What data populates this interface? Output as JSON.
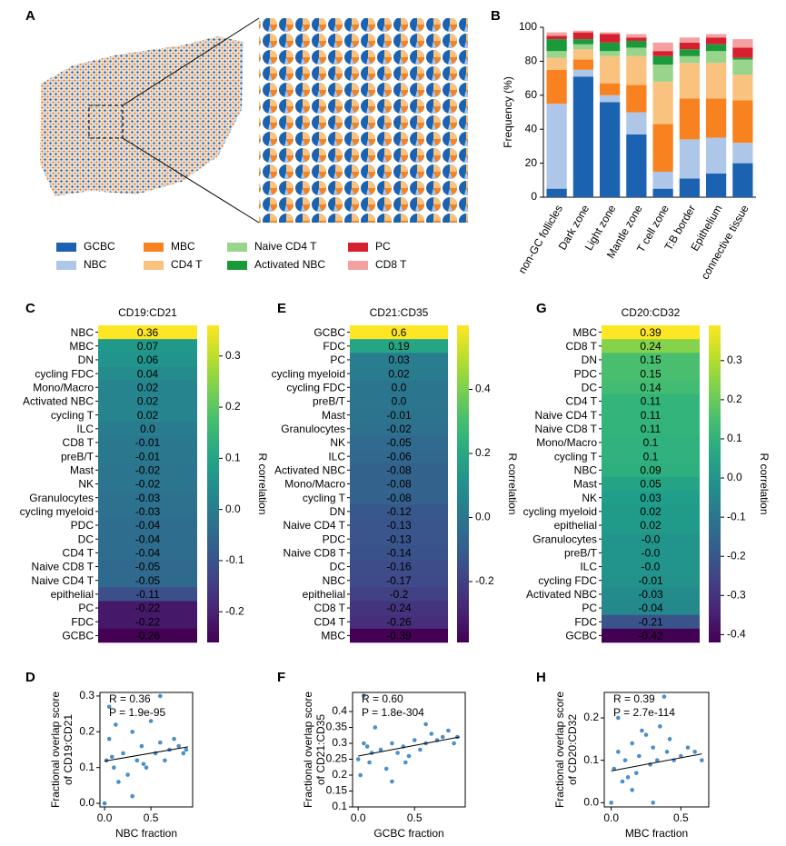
{
  "figure": {
    "panel_a": "A"
  },
  "chart_data": [
    {
      "type": "bar",
      "stacked": true,
      "panel": "B",
      "ylabel": "Frequency (%)",
      "categories": [
        "non-GC follicles",
        "Dark zone",
        "Light zone",
        "Mantle zone",
        "T cell zone",
        "T:B border",
        "Epithelium",
        "connective tissue"
      ],
      "series": [
        {
          "name": "GCBC",
          "color": "#1b63b0",
          "values": [
            5,
            71,
            56,
            37,
            5,
            11,
            14,
            20
          ]
        },
        {
          "name": "NBC",
          "color": "#aec7e8",
          "values": [
            50,
            4,
            4,
            13,
            10,
            23,
            21,
            12
          ]
        },
        {
          "name": "MBC",
          "color": "#f7821f",
          "values": [
            20,
            6,
            7,
            16,
            28,
            24,
            23,
            25
          ]
        },
        {
          "name": "CD4 T",
          "color": "#f9c27e",
          "values": [
            7,
            6,
            16,
            17,
            25,
            21,
            21,
            15
          ]
        },
        {
          "name": "Naive CD4 T",
          "color": "#98d48c",
          "values": [
            4,
            3,
            3,
            5,
            10,
            4,
            7,
            9
          ]
        },
        {
          "name": "Activated NBC",
          "color": "#1a9a3a",
          "values": [
            7,
            3,
            5,
            4,
            5,
            4,
            4,
            1
          ]
        },
        {
          "name": "PC",
          "color": "#d62030",
          "values": [
            2,
            4,
            5,
            2,
            3,
            4,
            4,
            6
          ]
        },
        {
          "name": "CD8 T",
          "color": "#f4a0a0",
          "values": [
            2,
            1,
            1,
            2,
            5,
            3,
            2,
            5
          ]
        }
      ],
      "ylim": [
        0,
        100
      ],
      "yticks": [
        0,
        20,
        40,
        60,
        80,
        100
      ]
    },
    {
      "type": "heatmap",
      "panel": "C",
      "title": "CD19:CD21",
      "colormap": "viridis",
      "colorbar_label": "R correlation",
      "categories": [
        "NBC",
        "MBC",
        "DN",
        "cycling FDC",
        "Mono/Macro",
        "Activated NBC",
        "cycling T",
        "ILC",
        "CD8 T",
        "preB/T",
        "Mast",
        "NK",
        "Granulocytes",
        "cycling myeloid",
        "PDC",
        "DC",
        "CD4 T",
        "Naive CD8 T",
        "Naive CD4 T",
        "epithelial",
        "PC",
        "FDC",
        "GCBC"
      ],
      "values": [
        0.36,
        0.07,
        0.06,
        0.04,
        0.02,
        0.02,
        0.02,
        0,
        -0.01,
        -0.01,
        -0.02,
        -0.02,
        -0.03,
        -0.03,
        -0.04,
        -0.04,
        -0.04,
        -0.05,
        -0.05,
        -0.11,
        -0.22,
        -0.22,
        -0.26
      ],
      "value_labels": [
        "0.36",
        "0.07",
        "0.06",
        "0.04",
        "0.02",
        "0.02",
        "0.02",
        "0.0",
        "-0.01",
        "-0.01",
        "-0.02",
        "-0.02",
        "-0.03",
        "-0.03",
        "-0.04",
        "-0.04",
        "-0.04",
        "-0.05",
        "-0.05",
        "-0.11",
        "-0.22",
        "-0.22",
        "-0.26"
      ],
      "clim": [
        -0.26,
        0.36
      ],
      "cticks": [
        -0.2,
        -0.1,
        {
          "value": 0,
          "label": "0.0"
        },
        0.1,
        0.2,
        0.3
      ]
    },
    {
      "type": "heatmap",
      "panel": "E",
      "title": "CD21:CD35",
      "colormap": "viridis",
      "colorbar_label": "R correlation",
      "categories": [
        "GCBC",
        "FDC",
        "PC",
        "cycling myeloid",
        "cycling FDC",
        "preB/T",
        "Mast",
        "Granulocytes",
        "NK",
        "ILC",
        "Activated NBC",
        "Mono/Macro",
        "cycling T",
        "DN",
        "Naive CD4 T",
        "PDC",
        "Naive CD8 T",
        "DC",
        "NBC",
        "epithelial",
        "CD8 T",
        "CD4 T",
        "MBC"
      ],
      "values": [
        0.6,
        0.19,
        0.03,
        0.02,
        0,
        0,
        -0.01,
        -0.02,
        -0.05,
        -0.06,
        -0.08,
        -0.08,
        -0.08,
        -0.12,
        -0.13,
        -0.13,
        -0.14,
        -0.16,
        -0.17,
        -0.2,
        -0.24,
        -0.26,
        -0.39
      ],
      "value_labels": [
        "0.6",
        "0.19",
        "0.03",
        "0.02",
        "0.0",
        "0.0",
        "-0.01",
        "-0.02",
        "-0.05",
        "-0.06",
        "-0.08",
        "-0.08",
        "-0.08",
        "-0.12",
        "-0.13",
        "-0.13",
        "-0.14",
        "-0.16",
        "-0.17",
        "-0.2",
        "-0.24",
        "-0.26",
        "-0.39"
      ],
      "clim": [
        -0.39,
        0.6
      ],
      "cticks": [
        -0.2,
        {
          "value": 0,
          "label": "0.0"
        },
        0.2,
        0.4
      ]
    },
    {
      "type": "heatmap",
      "panel": "G",
      "title": "CD20:CD32",
      "colormap": "viridis",
      "colorbar_label": "R correlation",
      "categories": [
        "MBC",
        "CD8 T",
        "DN",
        "PDC",
        "DC",
        "CD4 T",
        "Naive CD4 T",
        "Naive CD8 T",
        "Mono/Macro",
        "cycling T",
        "NBC",
        "Mast",
        "NK",
        "cycling myeloid",
        "epithelial",
        "Granulocytes",
        "preB/T",
        "ILC",
        "cycling FDC",
        "Activated NBC",
        "PC",
        "FDC",
        "GCBC"
      ],
      "values": [
        0.39,
        0.24,
        0.15,
        0.15,
        0.14,
        0.11,
        0.11,
        0.11,
        0.1,
        0.1,
        0.09,
        0.05,
        0.03,
        0.02,
        0.02,
        0,
        0,
        0,
        -0.01,
        -0.03,
        -0.04,
        -0.21,
        -0.42
      ],
      "value_labels": [
        "0.39",
        "0.24",
        "0.15",
        "0.15",
        "0.14",
        "0.11",
        "0.11",
        "0.11",
        "0.1",
        "0.1",
        "0.09",
        "0.05",
        "0.03",
        "0.02",
        "0.02",
        "-0.0",
        "-0.0",
        "-0.0",
        "-0.01",
        "-0.03",
        "-0.04",
        "-0.21",
        "-0.42"
      ],
      "clim": [
        -0.42,
        0.39
      ],
      "cticks": [
        -0.4,
        -0.3,
        -0.2,
        -0.1,
        {
          "value": 0,
          "label": "0.0"
        },
        0.1,
        0.2,
        0.3
      ]
    },
    {
      "type": "scatter",
      "panel": "D",
      "xlabel": "NBC fraction",
      "ylabel": [
        "Fractional overlap score",
        "of CD19:CD21"
      ],
      "color": "#2a7bbf",
      "annotations": [
        "R = 0.36",
        "P = 1.9e-95"
      ],
      "x": [
        0,
        0.02,
        0.05,
        0.1,
        0.12,
        0.2,
        0.25,
        0.3,
        0.35,
        0.4,
        0.45,
        0.5,
        0.55,
        0.6,
        0.65,
        0.7,
        0.75,
        0.8,
        0.85,
        0.88,
        0.05,
        0.3,
        0.15,
        0.6,
        0.08,
        0.42
      ],
      "values": [
        0,
        0.12,
        0.18,
        0.1,
        0.22,
        0.14,
        0.08,
        0.2,
        0.12,
        0.16,
        0.1,
        0.23,
        0.14,
        0.17,
        0.12,
        0.15,
        0.18,
        0.16,
        0.14,
        0.15,
        0.27,
        0.02,
        0.06,
        0.3,
        0.13,
        0.11
      ],
      "fit": {
        "x": [
          0,
          0.9
        ],
        "values": [
          0.118,
          0.158
        ]
      },
      "xlim": [
        -0.05,
        0.95
      ],
      "xticks": [
        {
          "value": 0,
          "label": "0.0"
        },
        0.5
      ],
      "ylim": [
        -0.01,
        0.31
      ],
      "yticks": [
        {
          "value": 0,
          "label": "0.0"
        },
        0.1,
        0.2,
        0.3
      ]
    },
    {
      "type": "scatter",
      "panel": "F",
      "xlabel": "GCBC fraction",
      "ylabel": [
        "Fractional overlap score",
        "of CD21:CD35"
      ],
      "color": "#2a7bbf",
      "annotations": [
        "R = 0.60",
        "P = 1.8e-304"
      ],
      "x": [
        0,
        0.02,
        0.05,
        0.1,
        0.12,
        0.2,
        0.25,
        0.3,
        0.35,
        0.4,
        0.45,
        0.5,
        0.55,
        0.6,
        0.65,
        0.7,
        0.75,
        0.8,
        0.85,
        0.88,
        0.05,
        0.3,
        0.15,
        0.6,
        0.08,
        0.42
      ],
      "values": [
        0.25,
        0.2,
        0.3,
        0.24,
        0.27,
        0.28,
        0.22,
        0.3,
        0.27,
        0.29,
        0.26,
        0.31,
        0.28,
        0.3,
        0.33,
        0.31,
        0.32,
        0.34,
        0.3,
        0.32,
        0.45,
        0.18,
        0.35,
        0.36,
        0.29,
        0.24
      ],
      "fit": {
        "x": [
          0,
          0.9
        ],
        "values": [
          0.26,
          0.32
        ]
      },
      "xlim": [
        -0.05,
        0.95
      ],
      "xticks": [
        {
          "value": 0,
          "label": "0.0"
        },
        0.5
      ],
      "ylim": [
        0.1,
        0.46
      ],
      "yticks": [
        0.1,
        0.15,
        0.2,
        0.25,
        0.3,
        0.35,
        0.4
      ]
    },
    {
      "type": "scatter",
      "panel": "H",
      "xlabel": "MBC fraction",
      "ylabel": [
        "Fractional overlap score",
        "of CD20:CD32"
      ],
      "color": "#2a7bbf",
      "annotations": [
        "R = 0.39",
        "P = 2.7e-114"
      ],
      "x": [
        0,
        0.02,
        0.05,
        0.08,
        0.1,
        0.15,
        0.18,
        0.2,
        0.25,
        0.28,
        0.3,
        0.33,
        0.35,
        0.4,
        0.42,
        0.45,
        0.5,
        0.55,
        0.6,
        0.65,
        0.05,
        0.3,
        0.15,
        0.38,
        0.22,
        0.12
      ],
      "values": [
        0,
        0.08,
        0.12,
        0.05,
        0.1,
        0.14,
        0.07,
        0.11,
        0.16,
        0.09,
        0.13,
        0.1,
        0.18,
        0.12,
        0.15,
        0.1,
        0.11,
        0.13,
        0.12,
        0.1,
        0.2,
        0,
        0.03,
        0.25,
        0.17,
        0.06
      ],
      "fit": {
        "x": [
          0,
          0.65
        ],
        "values": [
          0.075,
          0.115
        ]
      },
      "xlim": [
        -0.05,
        0.7
      ],
      "xticks": [
        {
          "value": 0,
          "label": "0.0"
        },
        0.5
      ],
      "ylim": [
        -0.01,
        0.26
      ],
      "yticks": [
        {
          "value": 0,
          "label": "0.0"
        },
        0.1,
        0.2
      ]
    }
  ]
}
